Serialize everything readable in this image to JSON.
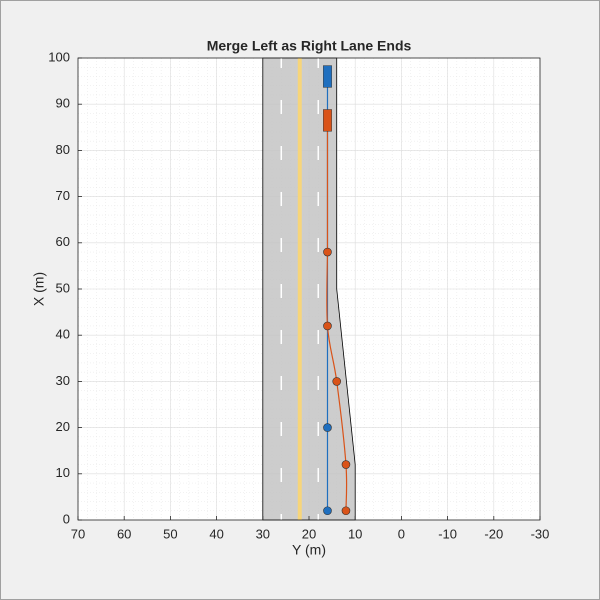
{
  "chart_data": {
    "type": "scenario",
    "title": "Merge Left as Right Lane Ends",
    "xlabel": "Y (m)",
    "ylabel": "X (m)",
    "xlim": [
      70,
      -30
    ],
    "ylim": [
      0,
      100
    ],
    "xticks": [
      70,
      60,
      50,
      40,
      30,
      20,
      10,
      0,
      -10,
      -20,
      -30
    ],
    "yticks": [
      0,
      10,
      20,
      30,
      40,
      50,
      60,
      70,
      80,
      90,
      100
    ],
    "grid": true,
    "minor_grid": true,
    "road": {
      "color": "#c4c4c4",
      "edge_color": "#000000",
      "x": [
        30,
        30,
        14,
        14,
        10,
        10
      ],
      "values": [
        0,
        100,
        100,
        50,
        12,
        0
      ]
    },
    "lane_markings": [
      {
        "x": 26,
        "color": "#ffffff",
        "style": "dashed"
      },
      {
        "x": 22,
        "color": "#f7d57a",
        "style": "solid"
      },
      {
        "x": 18,
        "color": "#ffffff",
        "style": "dashed"
      }
    ],
    "series": [
      {
        "color": "#1f6fbf",
        "x": [
          16,
          16
        ],
        "values": [
          2,
          20
        ],
        "vehicle": {
          "x": 16,
          "y": 96,
          "length": 4.7,
          "width": 1.8
        }
      },
      {
        "color": "#d95319",
        "x": [
          12,
          12,
          14,
          16,
          16
        ],
        "values": [
          2,
          12,
          30,
          42,
          58
        ],
        "vehicle": {
          "x": 16,
          "y": 86.5,
          "length": 4.7,
          "width": 1.8
        }
      }
    ]
  }
}
